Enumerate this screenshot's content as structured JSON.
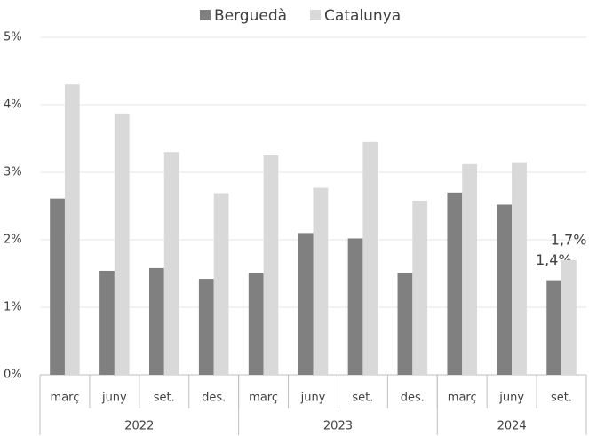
{
  "chart_data": {
    "type": "bar",
    "groups": [
      {
        "name": "2022",
        "categories": [
          "març",
          "juny",
          "set.",
          "des."
        ]
      },
      {
        "name": "2023",
        "categories": [
          "març",
          "juny",
          "set.",
          "des."
        ]
      },
      {
        "name": "2024",
        "categories": [
          "març",
          "juny",
          "set."
        ]
      }
    ],
    "series": [
      {
        "name": "Berguedà",
        "color": "#808080",
        "values": [
          2.61,
          1.54,
          1.58,
          1.42,
          1.5,
          2.1,
          2.02,
          1.51,
          2.7,
          2.52,
          1.4
        ],
        "value_labels": [
          null,
          null,
          null,
          null,
          null,
          null,
          null,
          null,
          null,
          null,
          "1,4%"
        ]
      },
      {
        "name": "Catalunya",
        "color": "#d9d9d9",
        "values": [
          4.3,
          3.87,
          3.3,
          2.69,
          3.25,
          2.77,
          3.45,
          2.58,
          3.12,
          3.15,
          1.7
        ],
        "value_labels": [
          null,
          null,
          null,
          null,
          null,
          null,
          null,
          null,
          null,
          null,
          "1,7%"
        ]
      }
    ],
    "ylim": [
      0,
      5
    ],
    "yticks": [
      {
        "value": 0,
        "label": "0%"
      },
      {
        "value": 1,
        "label": "1%"
      },
      {
        "value": 2,
        "label": "2%"
      },
      {
        "value": 3,
        "label": "3%"
      },
      {
        "value": 4,
        "label": "4%"
      },
      {
        "value": 5,
        "label": "5%"
      }
    ],
    "grid": true,
    "legend": "top"
  }
}
